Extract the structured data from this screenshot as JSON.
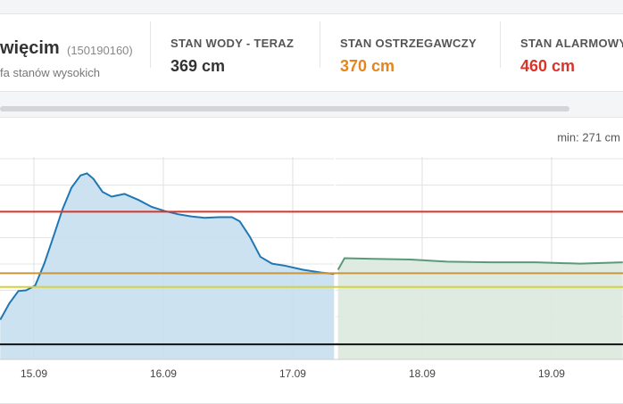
{
  "header": {
    "station": "więcim",
    "code": "(150190160)",
    "subtitle": "fa stanów wysokich"
  },
  "stats": [
    {
      "label": "STAN WODY - TERAZ",
      "value": "369 cm",
      "color": "#333333"
    },
    {
      "label": "STAN OSTRZEGAWCZY",
      "value": "370 cm",
      "color": "#e6851e"
    },
    {
      "label": "STAN ALARMOWY",
      "value": "460 cm",
      "color": "#d9342b"
    }
  ],
  "chart_data": {
    "type": "area",
    "annotation": "min: 271 cm",
    "xlim": [
      14.738,
      19.552
    ],
    "xticks": [
      {
        "value": 15,
        "label": "15.09"
      },
      {
        "value": 16,
        "label": "16.09"
      },
      {
        "value": 17,
        "label": "17.09"
      },
      {
        "value": 18,
        "label": "18.09"
      },
      {
        "value": 19,
        "label": "19.09"
      }
    ],
    "ylim": [
      244,
      540
    ],
    "grid": true,
    "series": [
      {
        "color": "#1f77b4",
        "fill": "#c7dff0",
        "x": [
          14.74,
          14.81,
          14.88,
          14.94,
          15.01,
          15.08,
          15.15,
          15.22,
          15.29,
          15.36,
          15.41,
          15.46,
          15.53,
          15.6,
          15.7,
          15.81,
          15.91,
          16.01,
          16.12,
          16.22,
          16.32,
          16.43,
          16.53,
          16.59,
          16.67,
          16.75,
          16.84,
          16.94,
          17.08,
          17.22,
          17.32
        ],
        "values": [
          302,
          326,
          344,
          345,
          352,
          384,
          423,
          463,
          495,
          513,
          516,
          508,
          489,
          482,
          486,
          477,
          467,
          461,
          456,
          453,
          451,
          452,
          452,
          446,
          423,
          394,
          384,
          381,
          375,
          371,
          369
        ]
      },
      {
        "color": "#5a9a7a",
        "fill": "#dbe9dd",
        "x": [
          17.35,
          17.4,
          17.63,
          17.91,
          18.19,
          18.53,
          18.88,
          19.22,
          19.55
        ],
        "values": [
          375,
          392,
          391,
          390,
          387,
          386,
          386,
          384,
          386
        ]
      }
    ],
    "thresholds": [
      {
        "value": 460,
        "color": "#d9342b"
      },
      {
        "value": 370,
        "color": "#c8963c"
      },
      {
        "value": 350,
        "color": "#d6d23a"
      },
      {
        "value": 266,
        "color": "#111111"
      }
    ]
  }
}
